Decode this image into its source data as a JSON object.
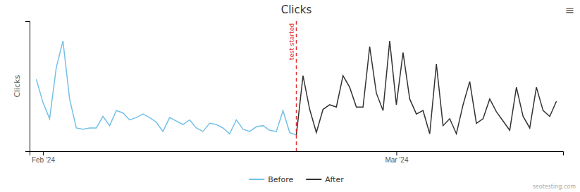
{
  "chart_data": {
    "type": "line",
    "title": "Clicks",
    "ylabel": "Clicks",
    "series": [
      {
        "name": "Before",
        "color": "#74c0e8",
        "x": [
          0,
          1,
          2,
          3,
          4,
          5,
          6,
          7,
          8,
          9,
          10,
          11,
          12,
          13,
          14,
          15,
          16,
          17,
          18,
          19,
          20,
          21,
          22,
          23,
          24,
          25,
          26,
          27,
          28,
          29,
          30,
          31,
          32,
          33,
          34,
          35,
          36,
          37,
          38,
          39
        ],
        "values": [
          62,
          42,
          28,
          72,
          95,
          45,
          20,
          19,
          20,
          20,
          30,
          22,
          35,
          33,
          27,
          29,
          32,
          29,
          25,
          17,
          29,
          26,
          23,
          27,
          20,
          17,
          24,
          23,
          20,
          15,
          27,
          19,
          17,
          21,
          22,
          18,
          17,
          35,
          16,
          14
        ]
      },
      {
        "name": "After",
        "color": "#333333",
        "x": [
          39,
          40,
          41,
          42,
          43,
          44,
          45,
          46,
          47,
          48,
          49,
          50,
          51,
          52,
          53,
          54,
          55,
          56,
          57,
          58,
          59,
          60,
          61,
          62,
          63,
          64,
          65,
          66,
          67,
          68,
          69,
          70,
          71,
          72,
          73,
          74,
          75,
          76,
          77,
          78
        ],
        "values": [
          14,
          65,
          36,
          16,
          36,
          40,
          38,
          65,
          55,
          38,
          38,
          90,
          50,
          35,
          95,
          40,
          85,
          45,
          32,
          35,
          15,
          75,
          22,
          28,
          15,
          40,
          60,
          24,
          28,
          45,
          34,
          26,
          18,
          55,
          30,
          20,
          55,
          35,
          30,
          43
        ]
      }
    ],
    "xlim": [
      -1,
      79
    ],
    "xticks": [
      {
        "value": 1,
        "label": "Feb '24"
      },
      {
        "value": 54,
        "label": "Mar '24"
      }
    ],
    "ylim": [
      0,
      112
    ],
    "yticks": [],
    "tick_labels": "x",
    "grid": false,
    "legend": "bottom",
    "annotations": [
      {
        "text": "test started",
        "x": 39,
        "color": "#e03030"
      },
      {
        "text": "≡"
      },
      {
        "text": "seotesting.com"
      }
    ]
  }
}
